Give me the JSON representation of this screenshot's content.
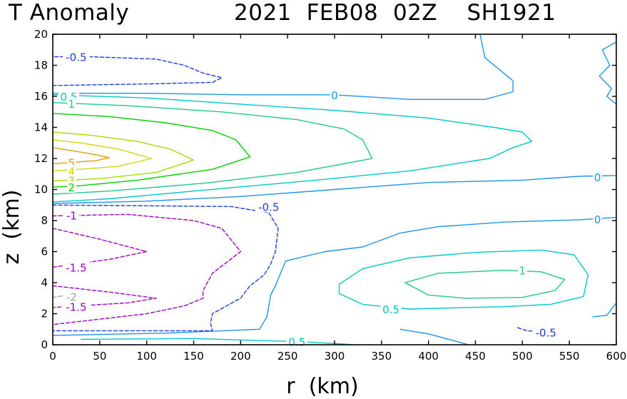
{
  "chart_data": {
    "type": "contour",
    "title_left": "T Anomaly",
    "title_right": "2021  FEB08  02Z    SH1921",
    "xlabel": "r  (km)",
    "ylabel": "z  (km)",
    "xlim": [
      0,
      600
    ],
    "ylim": [
      0,
      20
    ],
    "xticks": [
      0,
      50,
      100,
      150,
      200,
      250,
      300,
      350,
      400,
      450,
      500,
      550,
      600
    ],
    "yticks": [
      0,
      2,
      4,
      6,
      8,
      10,
      12,
      14,
      16,
      18,
      20
    ],
    "contours": [
      {
        "level": "5",
        "color": "#e0a000",
        "dashed": false,
        "points": [
          [
            0,
            12.7
          ],
          [
            20,
            12.5
          ],
          [
            45,
            12.25
          ],
          [
            60,
            12.05
          ],
          [
            45,
            11.85
          ],
          [
            20,
            11.75
          ],
          [
            0,
            11.65
          ]
        ]
      },
      {
        "level": "4",
        "color": "#d6d600",
        "dashed": false,
        "points": [
          [
            0,
            13.2
          ],
          [
            30,
            13.0
          ],
          [
            70,
            12.6
          ],
          [
            105,
            12.0
          ],
          [
            70,
            11.5
          ],
          [
            30,
            11.3
          ],
          [
            0,
            11.2
          ]
        ]
      },
      {
        "level": "3",
        "color": "#a0e000",
        "dashed": false,
        "points": [
          [
            0,
            13.7
          ],
          [
            40,
            13.5
          ],
          [
            90,
            13.1
          ],
          [
            125,
            12.6
          ],
          [
            150,
            11.9
          ],
          [
            110,
            11.1
          ],
          [
            50,
            10.7
          ],
          [
            0,
            10.55
          ]
        ]
      },
      {
        "level": "2",
        "color": "#00d000",
        "dashed": false,
        "points": [
          [
            0,
            14.9
          ],
          [
            60,
            14.7
          ],
          [
            120,
            14.3
          ],
          [
            170,
            13.8
          ],
          [
            195,
            13.2
          ],
          [
            210,
            12.1
          ],
          [
            170,
            11.3
          ],
          [
            90,
            10.6
          ],
          [
            30,
            10.25
          ],
          [
            0,
            10.15
          ]
        ]
      },
      {
        "level": "1",
        "color": "#20c890",
        "dashed": false,
        "points": [
          [
            0,
            15.6
          ],
          [
            80,
            15.4
          ],
          [
            180,
            15.0
          ],
          [
            260,
            14.5
          ],
          [
            310,
            13.9
          ],
          [
            330,
            13.2
          ],
          [
            340,
            12.0
          ],
          [
            260,
            11.1
          ],
          [
            160,
            10.4
          ],
          [
            60,
            9.9
          ],
          [
            0,
            9.7
          ]
        ]
      },
      {
        "level": "0.5",
        "color": "#00c8c8",
        "dashed": false,
        "points": [
          [
            0,
            16.1
          ],
          [
            100,
            15.9
          ],
          [
            200,
            15.5
          ],
          [
            300,
            15.1
          ],
          [
            400,
            14.6
          ],
          [
            470,
            14.0
          ],
          [
            500,
            13.7
          ],
          [
            510,
            13.1
          ],
          [
            490,
            12.7
          ],
          [
            465,
            12.0
          ],
          [
            380,
            11.2
          ],
          [
            280,
            10.6
          ],
          [
            150,
            9.9
          ],
          [
            60,
            9.4
          ],
          [
            0,
            9.2
          ]
        ]
      },
      {
        "level": "0.5",
        "color": "#00c8c8",
        "dashed": false,
        "points": [
          [
            30,
            0.35
          ],
          [
            150,
            0.4
          ],
          [
            260,
            0.2
          ],
          [
            310,
            0.05
          ],
          [
            320,
            0.0
          ]
        ]
      },
      {
        "level": "1",
        "color": "#20c890",
        "dashed": false,
        "points": [
          [
            375,
            4.0
          ],
          [
            410,
            4.6
          ],
          [
            480,
            4.8
          ],
          [
            520,
            4.7
          ],
          [
            545,
            4.2
          ],
          [
            535,
            3.5
          ],
          [
            500,
            3.05
          ],
          [
            440,
            3.0
          ],
          [
            400,
            3.2
          ],
          [
            375,
            4.0
          ]
        ]
      },
      {
        "level": "0.5",
        "color": "#00c8c8",
        "dashed": false,
        "points": [
          [
            305,
            3.9
          ],
          [
            330,
            4.9
          ],
          [
            380,
            5.6
          ],
          [
            450,
            5.95
          ],
          [
            520,
            6.1
          ],
          [
            555,
            5.8
          ],
          [
            570,
            4.5
          ],
          [
            565,
            3.1
          ],
          [
            530,
            2.6
          ],
          [
            480,
            2.45
          ],
          [
            440,
            2.4
          ],
          [
            380,
            2.3
          ],
          [
            330,
            2.6
          ],
          [
            305,
            3.3
          ],
          [
            305,
            3.9
          ]
        ]
      },
      {
        "level": "0",
        "color": "#1e96e6",
        "dashed": false,
        "points": [
          [
            0,
            16.2
          ],
          [
            100,
            16.2
          ],
          [
            200,
            16.1
          ],
          [
            300,
            16.1
          ],
          [
            380,
            15.8
          ],
          [
            460,
            15.8
          ],
          [
            490,
            16.3
          ],
          [
            490,
            17.0
          ],
          [
            460,
            18.5
          ],
          [
            455,
            20.0
          ]
        ]
      },
      {
        "level": "0",
        "color": "#1e96e6",
        "dashed": false,
        "points": [
          [
            0,
            9.1
          ],
          [
            100,
            9.25
          ],
          [
            200,
            9.55
          ],
          [
            300,
            10.0
          ],
          [
            400,
            10.45
          ],
          [
            500,
            10.6
          ],
          [
            560,
            10.85
          ],
          [
            600,
            10.9
          ]
        ]
      },
      {
        "level": "0",
        "color": "#1e96e6",
        "dashed": false,
        "points": [
          [
            0,
            0.6
          ],
          [
            120,
            0.75
          ],
          [
            220,
            1.0
          ],
          [
            228,
            1.8
          ],
          [
            232,
            3.2
          ],
          [
            237,
            3.8
          ],
          [
            248,
            5.4
          ],
          [
            290,
            6.0
          ],
          [
            330,
            6.3
          ],
          [
            370,
            7.2
          ],
          [
            410,
            7.6
          ],
          [
            480,
            7.9
          ],
          [
            560,
            8.05
          ],
          [
            600,
            8.2
          ]
        ]
      },
      {
        "level": "0",
        "color": "#1e96e6",
        "dashed": false,
        "points": [
          [
            370,
            1.0
          ],
          [
            400,
            0.7
          ],
          [
            440,
            0.05
          ]
        ]
      },
      {
        "level": "0",
        "color": "#1e96e6",
        "dashed": false,
        "points": [
          [
            575,
            1.8
          ],
          [
            590,
            1.9
          ],
          [
            600,
            2.7
          ]
        ]
      },
      {
        "level": "0",
        "color": "#1e96e6",
        "dashed": false,
        "points": [
          [
            600,
            19.5
          ],
          [
            585,
            19.0
          ],
          [
            593,
            18.0
          ],
          [
            582,
            17.3
          ],
          [
            595,
            16.5
          ],
          [
            590,
            16.0
          ],
          [
            600,
            15.5
          ]
        ]
      },
      {
        "level": "-0.5",
        "color": "#1e3ce6",
        "dashed": true,
        "points": [
          [
            0,
            16.7
          ],
          [
            100,
            16.8
          ],
          [
            170,
            16.9
          ],
          [
            180,
            17.2
          ],
          [
            160,
            17.5
          ],
          [
            140,
            18.0
          ],
          [
            110,
            18.4
          ],
          [
            40,
            18.55
          ],
          [
            0,
            18.55
          ]
        ]
      },
      {
        "level": "-0.5",
        "color": "#1e3ce6",
        "dashed": true,
        "points": [
          [
            0,
            9.0
          ],
          [
            100,
            8.95
          ],
          [
            190,
            8.9
          ],
          [
            230,
            8.5
          ],
          [
            240,
            7.5
          ],
          [
            237,
            6.0
          ],
          [
            232,
            5.2
          ],
          [
            225,
            4.5
          ],
          [
            210,
            3.8
          ],
          [
            200,
            3.0
          ],
          [
            170,
            2.0
          ],
          [
            168,
            1.4
          ],
          [
            170,
            0.9
          ],
          [
            0,
            0.9
          ]
        ]
      },
      {
        "level": "-0.5",
        "color": "#1e3ce6",
        "dashed": true,
        "points": [
          [
            495,
            1.1
          ],
          [
            505,
            0.9
          ],
          [
            520,
            0.85
          ]
        ]
      },
      {
        "level": "-1",
        "color": "#a000c8",
        "dashed": true,
        "points": [
          [
            0,
            8.3
          ],
          [
            80,
            8.4
          ],
          [
            150,
            8.0
          ],
          [
            180,
            7.5
          ],
          [
            200,
            6.0
          ],
          [
            170,
            4.6
          ],
          [
            160,
            3.5
          ],
          [
            160,
            3.0
          ],
          [
            140,
            2.5
          ],
          [
            100,
            2.0
          ],
          [
            0,
            1.3
          ]
        ]
      },
      {
        "level": "-1.5",
        "color": "#a000c8",
        "dashed": true,
        "points": [
          [
            0,
            7.5
          ],
          [
            50,
            6.8
          ],
          [
            100,
            6.0
          ],
          [
            60,
            5.5
          ],
          [
            0,
            5.0
          ]
        ]
      },
      {
        "level": "-1.5",
        "color": "#a000c8",
        "dashed": true,
        "points": [
          [
            0,
            3.8
          ],
          [
            60,
            3.4
          ],
          [
            110,
            3.0
          ],
          [
            80,
            2.7
          ],
          [
            0,
            2.4
          ]
        ]
      },
      {
        "level": "-2",
        "color": "#a0a0a0",
        "dashed": true,
        "points": [
          [
            0,
            3.05
          ],
          [
            15,
            3.2
          ],
          [
            30,
            3.1
          ]
        ]
      }
    ],
    "labels": [
      {
        "text": "-0.5",
        "x": 25,
        "y": 18.55,
        "color": "#1e3ce6"
      },
      {
        "text": "0",
        "x": 300,
        "y": 16.1,
        "color": "#1e96e6"
      },
      {
        "text": "0.5",
        "x": 17,
        "y": 16.0,
        "color": "#00c8c8"
      },
      {
        "text": "1",
        "x": 20,
        "y": 15.55,
        "color": "#20c890"
      },
      {
        "text": "5",
        "x": 20,
        "y": 11.75,
        "color": "#e0a000"
      },
      {
        "text": "4",
        "x": 20,
        "y": 11.2,
        "color": "#d6d600"
      },
      {
        "text": "3",
        "x": 20,
        "y": 10.6,
        "color": "#a0e000"
      },
      {
        "text": "2",
        "x": 20,
        "y": 10.15,
        "color": "#00d000"
      },
      {
        "text": "0",
        "x": 580,
        "y": 10.8,
        "color": "#1e96e6"
      },
      {
        "text": "-0.5",
        "x": 230,
        "y": 8.9,
        "color": "#1e3ce6"
      },
      {
        "text": "-1",
        "x": 20,
        "y": 8.35,
        "color": "#a000c8"
      },
      {
        "text": "0",
        "x": 580,
        "y": 8.1,
        "color": "#1e96e6"
      },
      {
        "text": "-1.5",
        "x": 25,
        "y": 5.0,
        "color": "#a000c8"
      },
      {
        "text": "1",
        "x": 500,
        "y": 4.8,
        "color": "#20c890"
      },
      {
        "text": "-2",
        "x": 20,
        "y": 3.1,
        "color": "#a0a0a0"
      },
      {
        "text": "-1.5",
        "x": 25,
        "y": 2.45,
        "color": "#a000c8"
      },
      {
        "text": "0.5",
        "x": 360,
        "y": 2.3,
        "color": "#00c8c8"
      },
      {
        "text": "-0.5",
        "x": 525,
        "y": 0.8,
        "color": "#1e3ce6"
      },
      {
        "text": "0.5",
        "x": 260,
        "y": 0.2,
        "color": "#00c8c8"
      }
    ]
  }
}
